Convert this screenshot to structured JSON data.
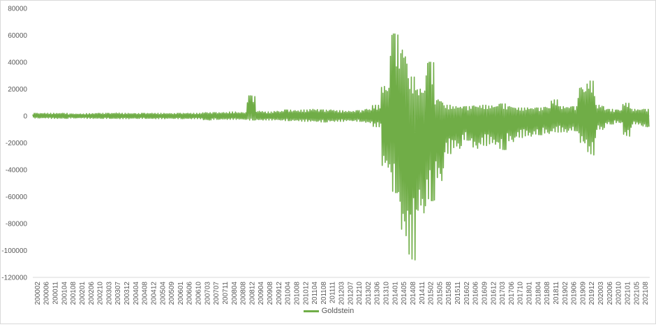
{
  "chart_data": {
    "type": "line",
    "ylim": [
      -120000,
      80000
    ],
    "yticks": [
      80000,
      60000,
      40000,
      20000,
      0,
      -20000,
      -40000,
      -60000,
      -80000,
      -100000,
      -120000
    ],
    "ytick_labels": [
      "80000",
      "60000",
      "40000",
      "20000",
      "0",
      "-20000",
      "-40000",
      "-60000",
      "-80000",
      "-100000",
      "-120000"
    ],
    "xtick_labels": [
      "200002",
      "200006",
      "200011",
      "200104",
      "200108",
      "200201",
      "200206",
      "200210",
      "200303",
      "200307",
      "200312",
      "200404",
      "200408",
      "200412",
      "200504",
      "200509",
      "200601",
      "200606",
      "200610",
      "200703",
      "200707",
      "200711",
      "200804",
      "200808",
      "200812",
      "200904",
      "200908",
      "200912",
      "201004",
      "201008",
      "201012",
      "201104",
      "201108",
      "201111",
      "201203",
      "201207",
      "201210",
      "201302",
      "201306",
      "201310",
      "201401",
      "201405",
      "201408",
      "201411",
      "201502",
      "201505",
      "201508",
      "201511",
      "201602",
      "201606",
      "201609",
      "201612",
      "201703",
      "201706",
      "201710",
      "201801",
      "201804",
      "201808",
      "201811",
      "201902",
      "201906",
      "201909",
      "201912",
      "202003",
      "202006",
      "202010",
      "202101",
      "202105",
      "202108"
    ],
    "grid": false,
    "legend_position": "bottom",
    "series": [
      {
        "name": "Goldstein",
        "color": "#70ad47",
        "envelope_x": [
          "200002",
          "200006",
          "200011",
          "200104",
          "200108",
          "200201",
          "200206",
          "200210",
          "200303",
          "200307",
          "200312",
          "200404",
          "200408",
          "200412",
          "200504",
          "200509",
          "200601",
          "200606",
          "200610",
          "200703",
          "200707",
          "200711",
          "200804",
          "200808",
          "200812",
          "200904",
          "200908",
          "200912",
          "201004",
          "201008",
          "201012",
          "201104",
          "201108",
          "201111",
          "201203",
          "201207",
          "201210",
          "201302",
          "201306",
          "201310",
          "201401",
          "201405",
          "201408",
          "201411",
          "201502",
          "201505",
          "201508",
          "201511",
          "201602",
          "201606",
          "201609",
          "201612",
          "201703",
          "201706",
          "201710",
          "201801",
          "201804",
          "201808",
          "201811",
          "201902",
          "201906",
          "201909",
          "201912",
          "202003",
          "202006",
          "202010",
          "202101",
          "202105",
          "202108"
        ],
        "envelope_max": [
          2000,
          2000,
          2000,
          2000,
          1500,
          1500,
          1800,
          2000,
          2000,
          2200,
          2000,
          1800,
          2000,
          2000,
          2000,
          1800,
          2000,
          2000,
          2000,
          2500,
          2500,
          2500,
          3000,
          2500,
          15000,
          3500,
          3000,
          3500,
          4500,
          4000,
          4500,
          5000,
          4500,
          4500,
          4000,
          3500,
          4000,
          5000,
          8000,
          22000,
          61000,
          49000,
          29000,
          20000,
          40000,
          12000,
          8000,
          7000,
          7000,
          7500,
          8000,
          7500,
          9000,
          7000,
          6000,
          6000,
          6000,
          6500,
          12000,
          7000,
          7000,
          21000,
          26000,
          8000,
          5000,
          4500,
          9500,
          5000,
          5000
        ],
        "envelope_min": [
          -1500,
          -1500,
          -1800,
          -1800,
          -1500,
          -1500,
          -1800,
          -1800,
          -1800,
          -2000,
          -2000,
          -1800,
          -1800,
          -2000,
          -2000,
          -1800,
          -2000,
          -2000,
          -2000,
          -3000,
          -2500,
          -2500,
          -2500,
          -2500,
          -3000,
          -3000,
          -3000,
          -3000,
          -3500,
          -3500,
          -4000,
          -4000,
          -4500,
          -4000,
          -4000,
          -3500,
          -4000,
          -5000,
          -8000,
          -38000,
          -57000,
          -89000,
          -107000,
          -72000,
          -63000,
          -48000,
          -28000,
          -24000,
          -18000,
          -24000,
          -22000,
          -21000,
          -25000,
          -19000,
          -16000,
          -15000,
          -14000,
          -13000,
          -12000,
          -12000,
          -11000,
          -20000,
          -29000,
          -10000,
          -6000,
          -5000,
          -15000,
          -6000,
          -8000
        ]
      }
    ]
  }
}
